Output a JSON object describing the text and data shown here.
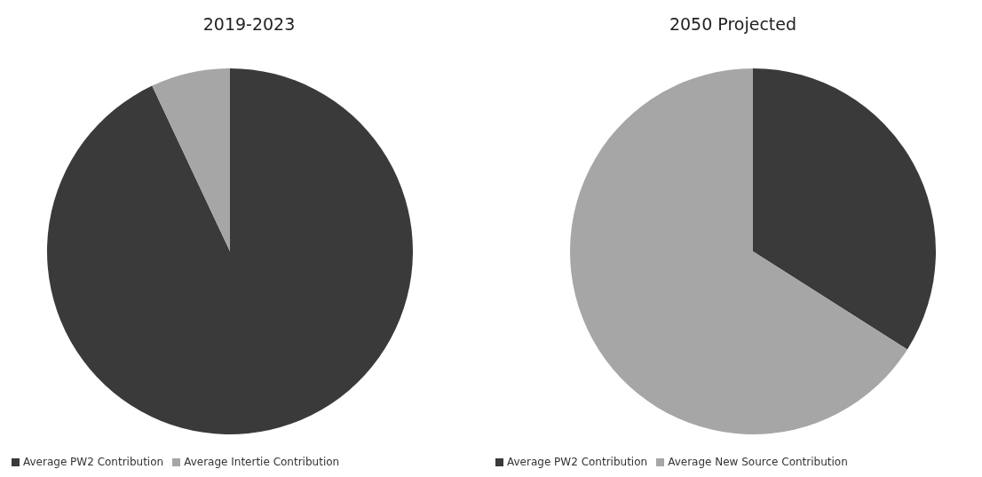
{
  "chart_data": [
    {
      "type": "pie",
      "title": "2019-2023",
      "categories": [
        "Average PW2 Contribution",
        "Average Intertie Contribution"
      ],
      "values": [
        93,
        7
      ],
      "colors": [
        "#3a3a3a",
        "#a6a6a6"
      ],
      "legend": "bottom"
    },
    {
      "type": "pie",
      "title": "2050 Projected",
      "categories": [
        "Average PW2 Contribution",
        "Average New Source Contribution"
      ],
      "values": [
        34,
        66
      ],
      "colors": [
        "#3a3a3a",
        "#a6a6a6"
      ],
      "legend": "bottom"
    }
  ]
}
